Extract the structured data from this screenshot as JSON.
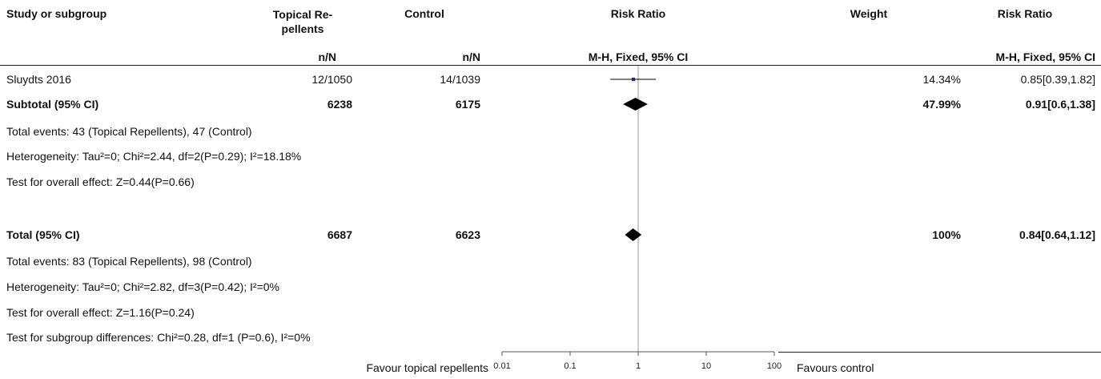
{
  "header": {
    "study_col": "Study or subgroup",
    "exp_col_line1": "Topical Re-",
    "exp_col_line2": "pellents",
    "ctrl_col": "Control",
    "rr_col": "Risk Ratio",
    "weight_col": "Weight",
    "rr2_col": "Risk Ratio",
    "exp_sub": "n/N",
    "ctrl_sub": "n/N",
    "rr_sub": "M-H, Fixed, 95% CI",
    "rr2_sub": "M-H, Fixed, 95% CI"
  },
  "rows": {
    "study": {
      "name": "Sluydts 2016",
      "exp": "12/1050",
      "ctrl": "14/1039",
      "weight": "14.34%",
      "ci": "0.85[0.39,1.82]"
    },
    "subtotal": {
      "name": "Subtotal (95% CI)",
      "exp": "6238",
      "ctrl": "6175",
      "weight": "47.99%",
      "ci": "0.91[0.6,1.38]"
    },
    "subtotal_events": "Total events: 43 (Topical Repellents), 47 (Control)",
    "subtotal_het": "Heterogeneity: Tau²=0; Chi²=2.44, df=2(P=0.29); I²=18.18%",
    "subtotal_test": "Test for overall effect: Z=0.44(P=0.66)",
    "total": {
      "name": "Total (95% CI)",
      "exp": "6687",
      "ctrl": "6623",
      "weight": "100%",
      "ci": "0.84[0.64,1.12]"
    },
    "total_events": "Total events: 83 (Topical Repellents), 98 (Control)",
    "total_het": "Heterogeneity: Tau²=0; Chi²=2.82, df=3(P=0.42); I²=0%",
    "total_test": "Test for overall effect: Z=1.16(P=0.24)",
    "subgroup_test": "Test for subgroup differences: Chi²=0.28, df=1 (P=0.6), I²=0%"
  },
  "footer": {
    "favour_left": "Favour topical repellents",
    "favour_right": "Favours control"
  },
  "chart_data": {
    "type": "forest",
    "scale": "log",
    "xlim": [
      0.01,
      100
    ],
    "ticks": [
      0.01,
      0.1,
      1,
      10,
      100
    ],
    "tick_labels": [
      "0.01",
      "0.1",
      "1",
      "10",
      "100"
    ],
    "null_line": 1,
    "colors": {
      "marker": "#1f2a7a",
      "line": "#000000",
      "axis": "#555555"
    },
    "estimates": [
      {
        "label": "Sluydts 2016",
        "kind": "study",
        "rr": 0.85,
        "lower": 0.39,
        "upper": 1.82,
        "weight": 14.34
      },
      {
        "label": "Subtotal (95% CI)",
        "kind": "diamond",
        "rr": 0.91,
        "lower": 0.6,
        "upper": 1.38
      },
      {
        "label": "Total (95% CI)",
        "kind": "diamond",
        "rr": 0.84,
        "lower": 0.64,
        "upper": 1.12
      }
    ]
  }
}
